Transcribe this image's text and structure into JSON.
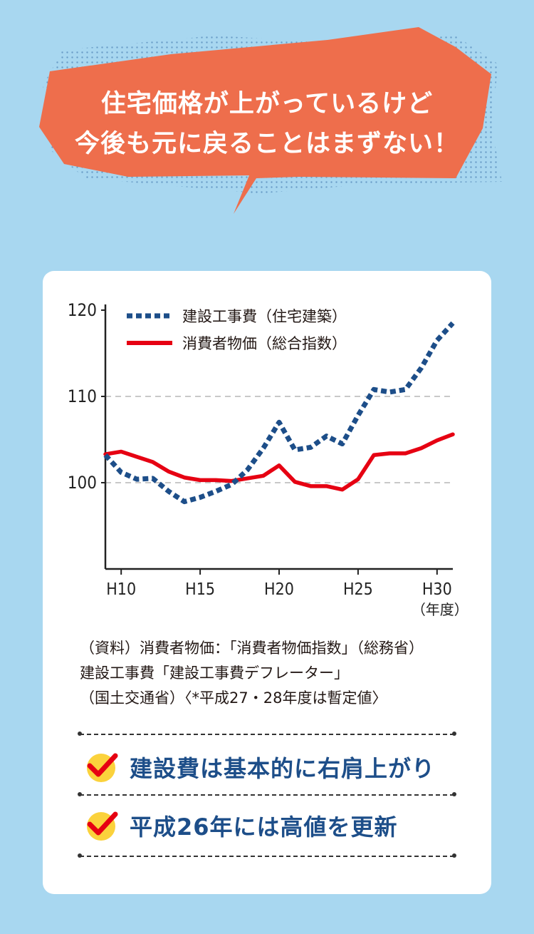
{
  "bubble": {
    "line1": "住宅価格が上がっているけど",
    "line2": "今後も元に戻ることはまずない！",
    "color": "#ee6e4c"
  },
  "chart_data": {
    "type": "line",
    "x_ticks": [
      "H10",
      "H15",
      "H20",
      "H25",
      "H30"
    ],
    "x_unit_label": "（年度）",
    "y_ticks": [
      100,
      110,
      120
    ],
    "ylim": [
      90,
      120
    ],
    "grid": "dashed at 100 and 110",
    "legend_position": "top-left",
    "series": [
      {
        "name": "建設工事費（住宅建築）",
        "style": "dashed",
        "color": "#1d4e89",
        "x": [
          9,
          10,
          11,
          12,
          13,
          14,
          15,
          16,
          17,
          18,
          19,
          20,
          21,
          22,
          23,
          24,
          25,
          26,
          27,
          28,
          29,
          30,
          31
        ],
        "values": [
          103.2,
          101.2,
          100.4,
          100.5,
          99.0,
          97.8,
          98.3,
          99.0,
          99.8,
          101.5,
          104.0,
          107.0,
          103.8,
          104.1,
          105.4,
          104.5,
          107.8,
          110.8,
          110.5,
          110.8,
          113.3,
          116.5,
          118.5
        ]
      },
      {
        "name": "消費者物価（総合指数）",
        "style": "solid",
        "color": "#e60012",
        "x": [
          9,
          10,
          11,
          12,
          13,
          14,
          15,
          16,
          17,
          18,
          19,
          20,
          21,
          22,
          23,
          24,
          25,
          26,
          27,
          28,
          29,
          30,
          31
        ],
        "values": [
          103.3,
          103.6,
          103.0,
          102.4,
          101.3,
          100.6,
          100.3,
          100.3,
          100.2,
          100.5,
          100.8,
          102.0,
          100.1,
          99.6,
          99.6,
          99.2,
          100.4,
          103.2,
          103.4,
          103.4,
          104.0,
          104.9,
          105.6
        ]
      }
    ]
  },
  "source": {
    "line1": "（資料）消費者物価：「消費者物価指数」（総務省）",
    "line2": "建設工事費「建設工事費デフレーター」",
    "line3": "（国土交通省）〈*平成27・28年度は暫定値〉"
  },
  "points": [
    {
      "text": "建設費は基本的に右肩上がり"
    },
    {
      "text": "平成26年には高値を更新"
    }
  ],
  "colors": {
    "background": "#a8d7f0",
    "navy": "#1d4e89",
    "red": "#e60012"
  }
}
